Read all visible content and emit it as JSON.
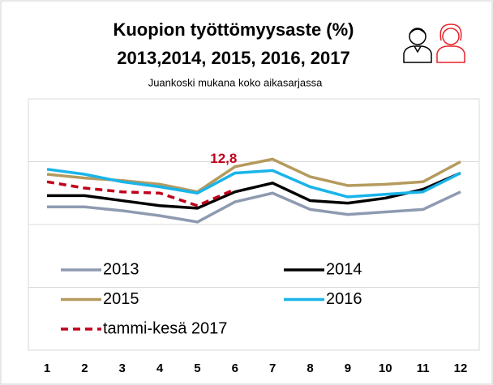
{
  "chart_data": {
    "type": "line",
    "title": "Kuopion työttömyysaste (%)",
    "subtitle": "2013,2014, 2015, 2016, 2017",
    "note": "Juankoski mukana koko aikasarjassa",
    "categories": [
      "1",
      "2",
      "3",
      "4",
      "5",
      "6",
      "7",
      "8",
      "9",
      "10",
      "11",
      "12"
    ],
    "series": [
      {
        "name": "2013",
        "color": "#8e9ab0",
        "values": [
          11.4,
          11.4,
          11.1,
          10.7,
          10.2,
          11.8,
          12.5,
          11.2,
          10.8,
          11.0,
          11.2,
          12.6
        ]
      },
      {
        "name": "2014",
        "color": "#000000",
        "values": [
          12.3,
          12.3,
          11.9,
          11.5,
          11.3,
          12.6,
          13.3,
          11.9,
          11.7,
          12.1,
          12.8,
          14.1
        ]
      },
      {
        "name": "2015",
        "color": "#b59a5e",
        "values": [
          14.0,
          13.7,
          13.5,
          13.2,
          12.6,
          14.6,
          15.2,
          13.8,
          13.1,
          13.2,
          13.4,
          15.0
        ]
      },
      {
        "name": "2016",
        "color": "#19b4ea",
        "values": [
          14.4,
          14.0,
          13.4,
          13.0,
          12.5,
          14.1,
          14.3,
          13.0,
          12.2,
          12.4,
          12.6,
          14.1
        ]
      },
      {
        "name": "tammi-kesä 2017",
        "color": "#c0001c",
        "dashed": true,
        "values": [
          13.4,
          12.9,
          12.6,
          12.5,
          11.5,
          12.8,
          null,
          null,
          null,
          null,
          null,
          null
        ],
        "value_labels": [
          null,
          null,
          null,
          null,
          null,
          "12,8",
          null,
          null,
          null,
          null,
          null,
          null
        ]
      }
    ],
    "ylim": [
      0,
      20
    ],
    "yticks": [
      5,
      10,
      15
    ],
    "grid": true
  }
}
